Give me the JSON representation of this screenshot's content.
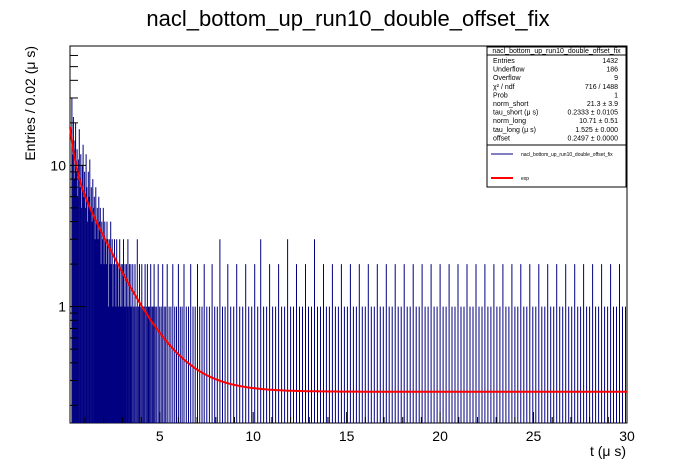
{
  "chart_data": {
    "type": "histogram",
    "title": "nacl_bottom_up_run10_double_offset_fix",
    "xlabel": "t (μ s)",
    "ylabel": "Entries / 0.02 (μ s)",
    "xlim": [
      0.2,
      30
    ],
    "ylim": [
      0.15,
      70
    ],
    "log_y": true,
    "bin_width": 0.02,
    "x_ticks": [
      5,
      10,
      15,
      20,
      25,
      30
    ],
    "y_ticks": [
      {
        "value": 1,
        "label": "1"
      },
      {
        "value": 10,
        "label": "10"
      }
    ],
    "colors": {
      "histogram": "#000080",
      "fit": "#ff0000",
      "frame": "#000000"
    },
    "stats_box": {
      "title": "nacl_bottom_up_run10_double_offset_fix",
      "rows": [
        {
          "label": "Entries",
          "value": "1432"
        },
        {
          "label": "Underflow",
          "value": "186"
        },
        {
          "label": "Overflow",
          "value": "9"
        },
        {
          "label": "χ² / ndf",
          "value": "716 / 1488"
        },
        {
          "label": "Prob",
          "value": "1"
        },
        {
          "label": "norm_short",
          "value": "21.3 ± 3.9"
        },
        {
          "label": "tau_short (μ s)",
          "value": "0.2333 ± 0.0105"
        },
        {
          "label": "norm_long",
          "value": "10.71 ± 0.51"
        },
        {
          "label": "tau_long (μ s)",
          "value": "1.525 ± 0.000"
        },
        {
          "label": "offset",
          "value": "0.2497 ± 0.0000"
        }
      ]
    },
    "legend": [
      {
        "label": "nacl_bottom_up_run10_double_offset_fix",
        "color": "#000080"
      },
      {
        "label": "exp",
        "color": "#ff0000"
      }
    ],
    "fit": {
      "name": "exp",
      "formula": "norm_short*exp(-t/tau_short) + norm_long*exp(-t/tau_long) + offset",
      "norm_short": 21.3,
      "tau_short": 0.2333,
      "norm_long": 10.71,
      "tau_long": 1.525,
      "offset": 0.2497
    },
    "series": [
      {
        "name": "nacl_bottom_up_run10_double_offset_fix",
        "kind": "histogram",
        "description": "1432 entries in 0.02 us bins; only non-empty bins shown; counts are integers",
        "bins": [
          [
            0.3,
            30
          ],
          [
            0.34,
            12
          ],
          [
            0.38,
            22
          ],
          [
            0.42,
            8
          ],
          [
            0.46,
            15
          ],
          [
            0.5,
            20
          ],
          [
            0.54,
            9
          ],
          [
            0.58,
            13
          ],
          [
            0.62,
            6
          ],
          [
            0.66,
            11
          ],
          [
            0.7,
            18
          ],
          [
            0.74,
            7
          ],
          [
            0.78,
            12
          ],
          [
            0.82,
            5
          ],
          [
            0.86,
            10
          ],
          [
            0.9,
            14
          ],
          [
            0.94,
            6
          ],
          [
            0.98,
            9
          ],
          [
            1.02,
            5
          ],
          [
            1.06,
            12
          ],
          [
            1.1,
            7
          ],
          [
            1.14,
            4
          ],
          [
            1.18,
            9
          ],
          [
            1.22,
            6
          ],
          [
            1.26,
            11
          ],
          [
            1.3,
            5
          ],
          [
            1.34,
            7
          ],
          [
            1.38,
            4
          ],
          [
            1.42,
            8
          ],
          [
            1.46,
            5
          ],
          [
            1.5,
            6
          ],
          [
            1.54,
            3
          ],
          [
            1.58,
            7
          ],
          [
            1.62,
            4
          ],
          [
            1.66,
            5
          ],
          [
            1.7,
            3
          ],
          [
            1.74,
            6
          ],
          [
            1.78,
            4
          ],
          [
            1.82,
            5
          ],
          [
            1.86,
            2
          ],
          [
            1.9,
            4
          ],
          [
            1.94,
            3
          ],
          [
            1.98,
            5
          ],
          [
            2.02,
            2
          ],
          [
            2.06,
            4
          ],
          [
            2.1,
            3
          ],
          [
            2.14,
            2
          ],
          [
            2.18,
            4
          ],
          [
            2.22,
            3
          ],
          [
            2.26,
            1
          ],
          [
            2.3,
            3
          ],
          [
            2.34,
            2
          ],
          [
            2.38,
            4
          ],
          [
            2.42,
            2
          ],
          [
            2.46,
            3
          ],
          [
            2.5,
            1
          ],
          [
            2.54,
            2
          ],
          [
            2.58,
            3
          ],
          [
            2.62,
            2
          ],
          [
            2.66,
            1
          ],
          [
            2.7,
            3
          ],
          [
            2.74,
            2
          ],
          [
            2.78,
            1
          ],
          [
            2.82,
            2
          ],
          [
            2.86,
            3
          ],
          [
            2.9,
            1
          ],
          [
            2.94,
            2
          ],
          [
            2.98,
            1
          ],
          [
            3.02,
            2
          ],
          [
            3.06,
            3
          ],
          [
            3.1,
            1
          ],
          [
            3.14,
            2
          ],
          [
            3.18,
            1
          ],
          [
            3.22,
            2
          ],
          [
            3.26,
            1
          ],
          [
            3.3,
            3
          ],
          [
            3.34,
            1
          ],
          [
            3.38,
            2
          ],
          [
            3.42,
            1
          ],
          [
            3.46,
            2
          ],
          [
            3.5,
            1
          ],
          [
            3.56,
            2
          ],
          [
            3.62,
            1
          ],
          [
            3.68,
            2
          ],
          [
            3.74,
            1
          ],
          [
            3.8,
            3
          ],
          [
            3.86,
            1
          ],
          [
            3.92,
            2
          ],
          [
            3.98,
            1
          ],
          [
            4.04,
            2
          ],
          [
            4.1,
            1
          ],
          [
            4.16,
            1
          ],
          [
            4.22,
            2
          ],
          [
            4.28,
            1
          ],
          [
            4.34,
            2
          ],
          [
            4.4,
            1
          ],
          [
            4.46,
            1
          ],
          [
            4.52,
            2
          ],
          [
            4.58,
            1
          ],
          [
            4.64,
            1
          ],
          [
            4.7,
            2
          ],
          [
            4.76,
            1
          ],
          [
            4.84,
            1
          ],
          [
            4.92,
            2
          ],
          [
            5.0,
            1
          ],
          [
            5.08,
            1
          ],
          [
            5.16,
            2
          ],
          [
            5.24,
            1
          ],
          [
            5.32,
            1
          ],
          [
            5.4,
            2
          ],
          [
            5.5,
            1
          ],
          [
            5.6,
            1
          ],
          [
            5.7,
            2
          ],
          [
            5.8,
            1
          ],
          [
            5.9,
            1
          ],
          [
            6.0,
            2
          ],
          [
            6.1,
            1
          ],
          [
            6.2,
            1
          ],
          [
            6.3,
            2
          ],
          [
            6.42,
            1
          ],
          [
            6.54,
            1
          ],
          [
            6.66,
            2
          ],
          [
            6.78,
            1
          ],
          [
            6.9,
            1
          ],
          [
            7.02,
            2
          ],
          [
            7.14,
            1
          ],
          [
            7.26,
            1
          ],
          [
            7.38,
            2
          ],
          [
            7.52,
            1
          ],
          [
            7.66,
            1
          ],
          [
            7.8,
            2
          ],
          [
            7.94,
            1
          ],
          [
            8.08,
            1
          ],
          [
            8.22,
            3
          ],
          [
            8.36,
            1
          ],
          [
            8.5,
            1
          ],
          [
            8.64,
            2
          ],
          [
            8.8,
            1
          ],
          [
            8.96,
            1
          ],
          [
            9.12,
            2
          ],
          [
            9.28,
            1
          ],
          [
            9.44,
            1
          ],
          [
            9.6,
            2
          ],
          [
            9.76,
            1
          ],
          [
            9.92,
            1
          ],
          [
            10.08,
            2
          ],
          [
            10.24,
            1
          ],
          [
            10.4,
            3
          ],
          [
            10.56,
            1
          ],
          [
            10.72,
            1
          ],
          [
            10.88,
            2
          ],
          [
            11.04,
            1
          ],
          [
            11.2,
            1
          ],
          [
            11.36,
            2
          ],
          [
            11.52,
            1
          ],
          [
            11.68,
            1
          ],
          [
            11.84,
            3
          ],
          [
            12.0,
            1
          ],
          [
            12.16,
            1
          ],
          [
            12.32,
            2
          ],
          [
            12.48,
            1
          ],
          [
            12.64,
            1
          ],
          [
            12.8,
            2
          ],
          [
            12.96,
            1
          ],
          [
            13.12,
            1
          ],
          [
            13.28,
            3
          ],
          [
            13.44,
            1
          ],
          [
            13.6,
            1
          ],
          [
            13.76,
            2
          ],
          [
            13.92,
            1
          ],
          [
            14.08,
            1
          ],
          [
            14.24,
            2
          ],
          [
            14.4,
            1
          ],
          [
            14.56,
            1
          ],
          [
            14.72,
            2
          ],
          [
            14.88,
            1
          ],
          [
            15.04,
            1
          ],
          [
            15.2,
            2
          ],
          [
            15.36,
            1
          ],
          [
            15.52,
            1
          ],
          [
            15.68,
            2
          ],
          [
            15.84,
            1
          ],
          [
            16.0,
            1
          ],
          [
            16.16,
            2
          ],
          [
            16.32,
            1
          ],
          [
            16.48,
            1
          ],
          [
            16.64,
            2
          ],
          [
            16.8,
            1
          ],
          [
            16.96,
            1
          ],
          [
            17.12,
            2
          ],
          [
            17.28,
            1
          ],
          [
            17.44,
            1
          ],
          [
            17.6,
            2
          ],
          [
            17.76,
            1
          ],
          [
            17.92,
            1
          ],
          [
            18.08,
            2
          ],
          [
            18.24,
            1
          ],
          [
            18.4,
            1
          ],
          [
            18.56,
            2
          ],
          [
            18.72,
            1
          ],
          [
            18.88,
            1
          ],
          [
            19.04,
            2
          ],
          [
            19.2,
            1
          ],
          [
            19.36,
            1
          ],
          [
            19.52,
            2
          ],
          [
            19.68,
            1
          ],
          [
            19.84,
            1
          ],
          [
            20.0,
            2
          ],
          [
            20.16,
            1
          ],
          [
            20.32,
            1
          ],
          [
            20.48,
            2
          ],
          [
            20.64,
            1
          ],
          [
            20.8,
            1
          ],
          [
            20.96,
            2
          ],
          [
            21.12,
            1
          ],
          [
            21.28,
            1
          ],
          [
            21.44,
            2
          ],
          [
            21.6,
            1
          ],
          [
            21.76,
            1
          ],
          [
            21.92,
            2
          ],
          [
            22.08,
            1
          ],
          [
            22.24,
            1
          ],
          [
            22.4,
            2
          ],
          [
            22.56,
            1
          ],
          [
            22.72,
            1
          ],
          [
            22.88,
            2
          ],
          [
            23.04,
            1
          ],
          [
            23.2,
            1
          ],
          [
            23.36,
            2
          ],
          [
            23.52,
            1
          ],
          [
            23.68,
            1
          ],
          [
            23.84,
            2
          ],
          [
            24.0,
            1
          ],
          [
            24.16,
            1
          ],
          [
            24.32,
            2
          ],
          [
            24.48,
            1
          ],
          [
            24.64,
            1
          ],
          [
            24.8,
            2
          ],
          [
            24.96,
            1
          ],
          [
            25.12,
            1
          ],
          [
            25.28,
            2
          ],
          [
            25.44,
            1
          ],
          [
            25.6,
            1
          ],
          [
            25.76,
            2
          ],
          [
            25.92,
            1
          ],
          [
            26.08,
            1
          ],
          [
            26.24,
            2
          ],
          [
            26.4,
            1
          ],
          [
            26.56,
            1
          ],
          [
            26.72,
            2
          ],
          [
            26.88,
            1
          ],
          [
            27.04,
            1
          ],
          [
            27.2,
            2
          ],
          [
            27.36,
            1
          ],
          [
            27.52,
            1
          ],
          [
            27.68,
            2
          ],
          [
            27.84,
            1
          ],
          [
            28.0,
            1
          ],
          [
            28.16,
            2
          ],
          [
            28.32,
            1
          ],
          [
            28.48,
            1
          ],
          [
            28.64,
            2
          ],
          [
            28.8,
            1
          ],
          [
            28.96,
            1
          ],
          [
            29.12,
            2
          ],
          [
            29.28,
            1
          ],
          [
            29.44,
            1
          ],
          [
            29.6,
            2
          ],
          [
            29.76,
            1
          ],
          [
            29.92,
            1
          ]
        ]
      }
    ]
  }
}
